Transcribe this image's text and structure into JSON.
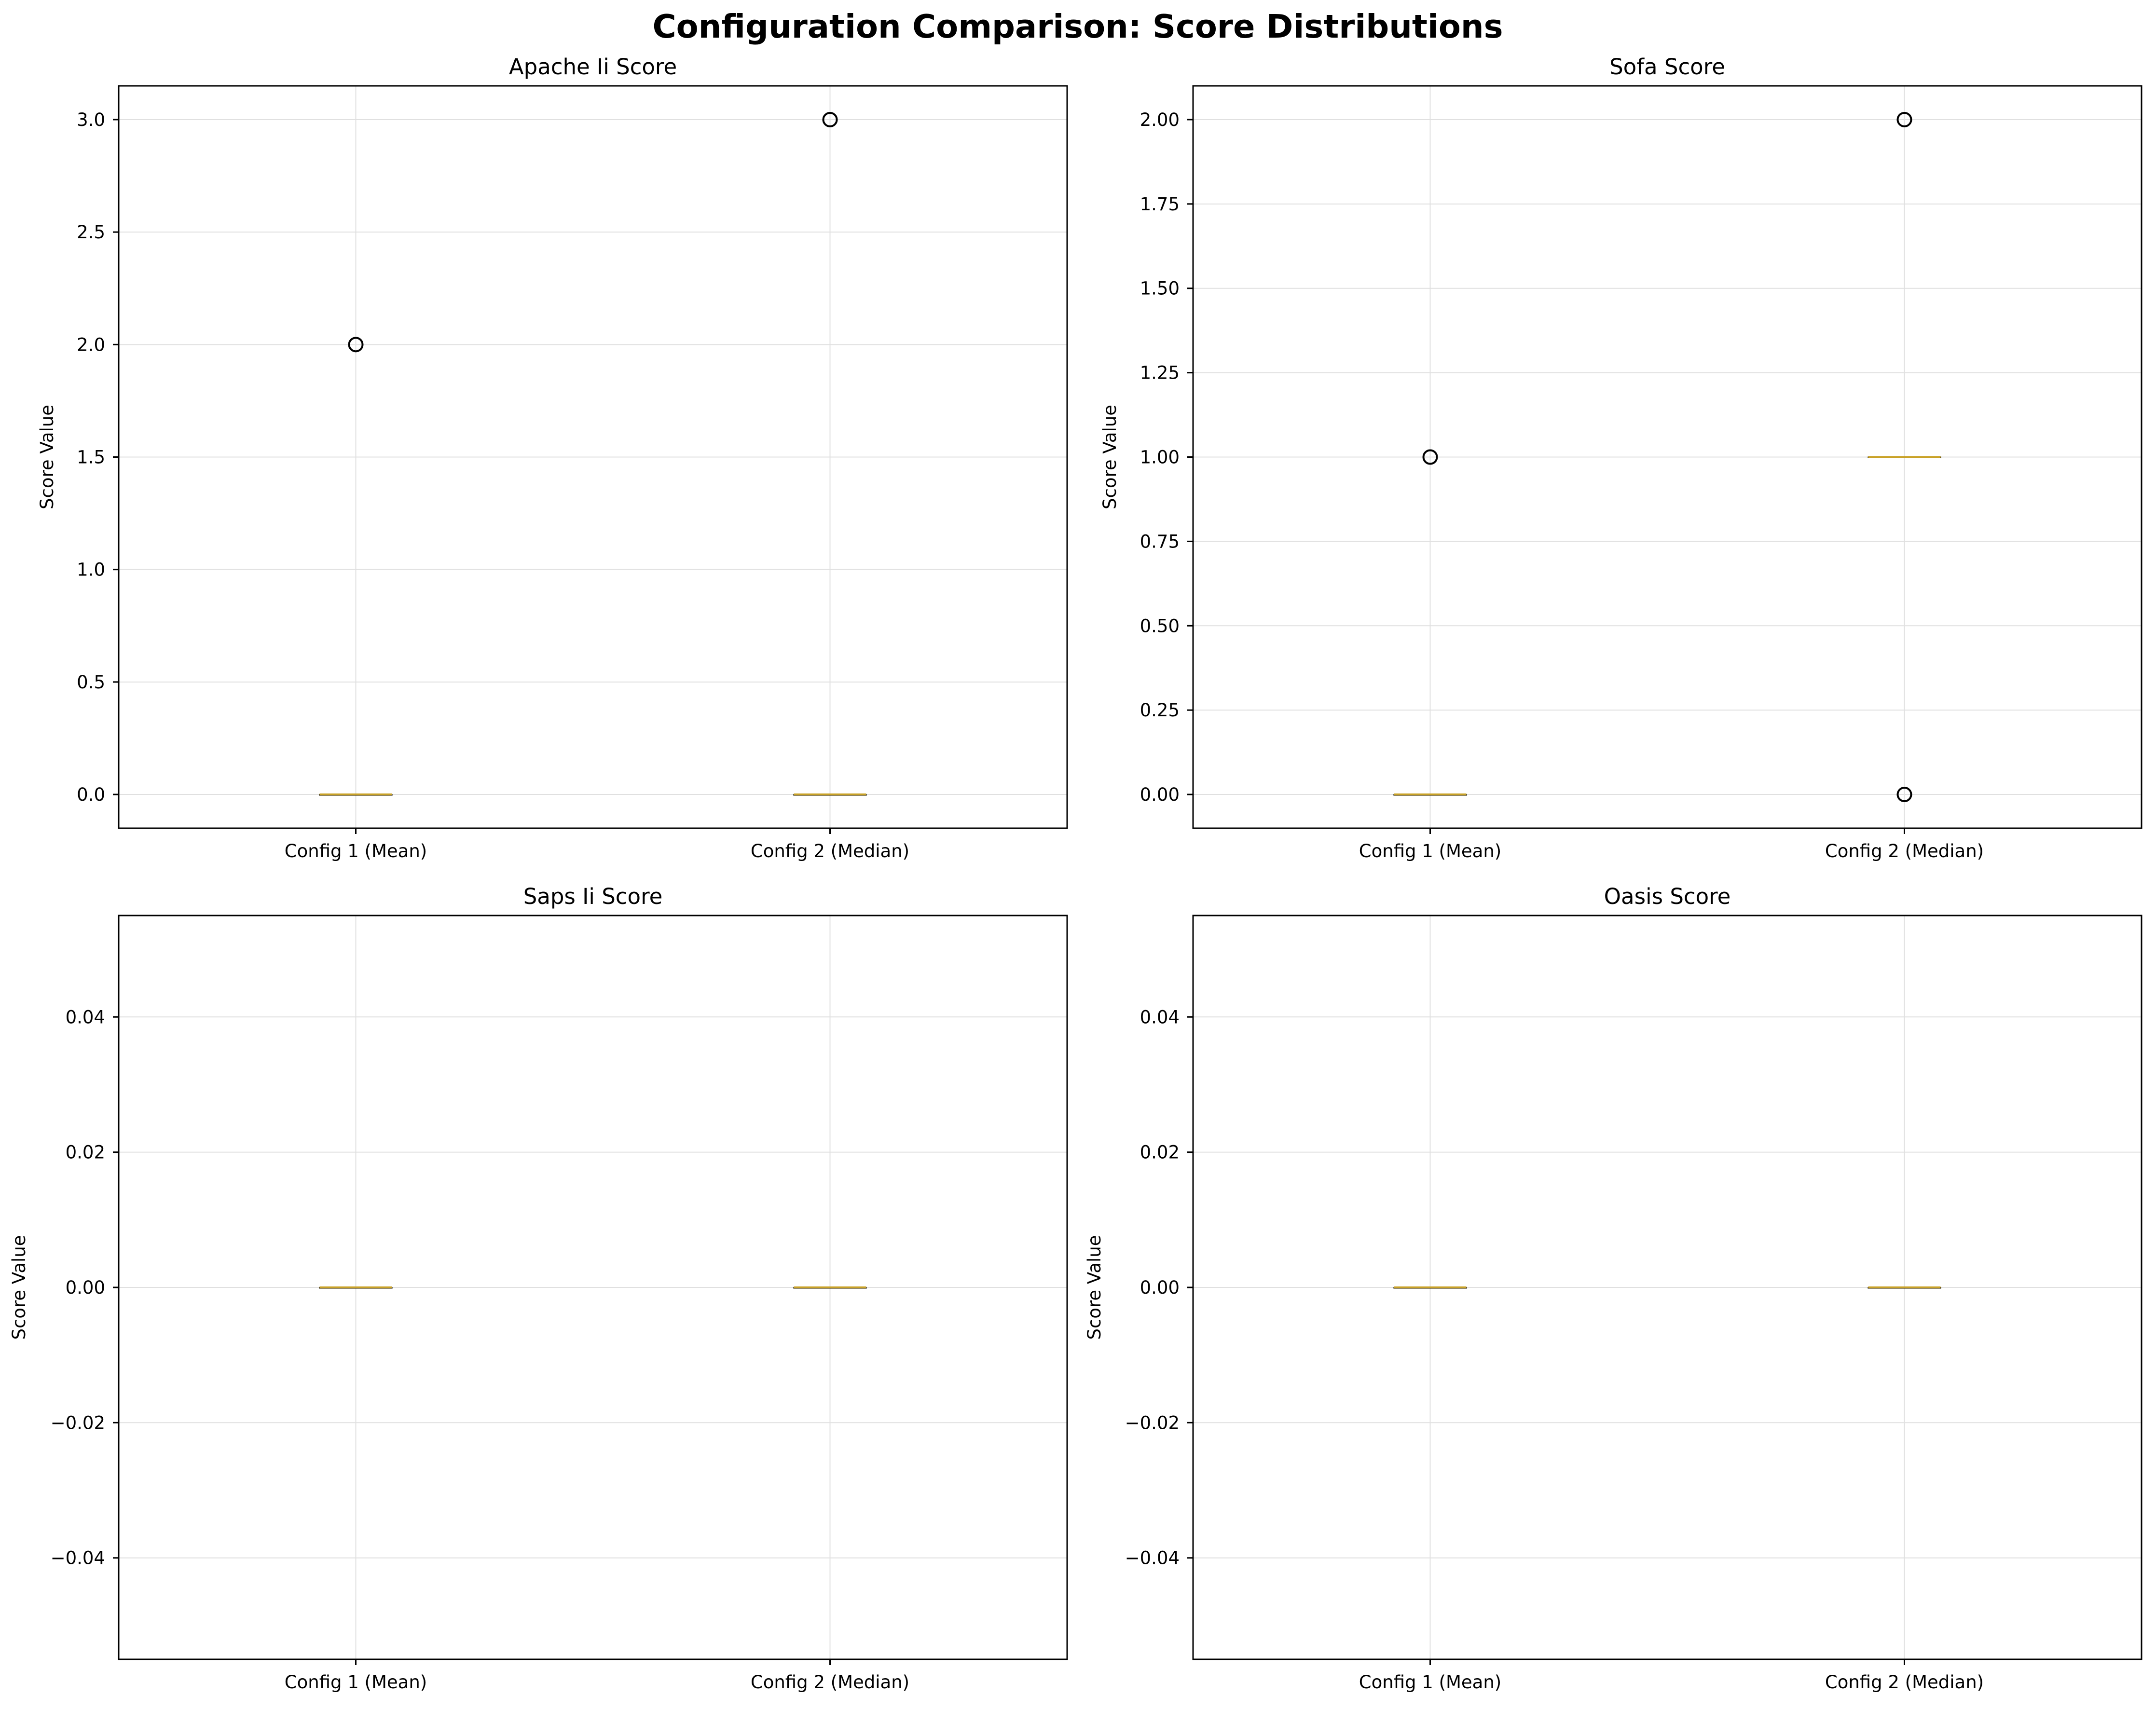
{
  "figure": {
    "title": "Configuration Comparison: Score Distributions"
  },
  "colors": {
    "grid": "#e0e0e0",
    "axes": "#000000",
    "median": "#c9a227",
    "median_edge": "#8a8a3a",
    "outlier_edge": "#000000"
  },
  "chart_data": [
    {
      "type": "box",
      "title": "Apache Ii Score",
      "ylabel": "Score Value",
      "ylim": [
        -0.15,
        3.15
      ],
      "yticks": [
        0.0,
        0.5,
        1.0,
        1.5,
        2.0,
        2.5,
        3.0
      ],
      "ytick_labels": [
        "0.0",
        "0.5",
        "1.0",
        "1.5",
        "2.0",
        "2.5",
        "3.0"
      ],
      "grid": true,
      "categories": [
        "Config 1 (Mean)",
        "Config 2 (Median)"
      ],
      "boxes": [
        {
          "q1": 0,
          "median": 0,
          "q3": 0,
          "whislo": 0,
          "whishi": 0,
          "fliers": [
            2.0
          ]
        },
        {
          "q1": 0,
          "median": 0,
          "q3": 0,
          "whislo": 0,
          "whishi": 0,
          "fliers": [
            3.0
          ]
        }
      ]
    },
    {
      "type": "box",
      "title": "Sofa Score",
      "ylabel": "Score Value",
      "ylim": [
        -0.1,
        2.1
      ],
      "yticks": [
        0.0,
        0.25,
        0.5,
        0.75,
        1.0,
        1.25,
        1.5,
        1.75,
        2.0
      ],
      "ytick_labels": [
        "0.00",
        "0.25",
        "0.50",
        "0.75",
        "1.00",
        "1.25",
        "1.50",
        "1.75",
        "2.00"
      ],
      "grid": true,
      "categories": [
        "Config 1 (Mean)",
        "Config 2 (Median)"
      ],
      "boxes": [
        {
          "q1": 0,
          "median": 0,
          "q3": 0,
          "whislo": 0,
          "whishi": 0,
          "fliers": [
            1.0
          ]
        },
        {
          "q1": 1,
          "median": 1,
          "q3": 1,
          "whislo": 1,
          "whishi": 1,
          "fliers": [
            2.0,
            0.0
          ]
        }
      ]
    },
    {
      "type": "box",
      "title": "Saps Ii Score",
      "ylabel": "Score Value",
      "ylim": [
        -0.055,
        0.055
      ],
      "yticks": [
        -0.04,
        -0.02,
        0.0,
        0.02,
        0.04
      ],
      "ytick_labels": [
        "−0.04",
        "−0.02",
        "0.00",
        "0.02",
        "0.04"
      ],
      "grid": true,
      "categories": [
        "Config 1 (Mean)",
        "Config 2 (Median)"
      ],
      "boxes": [
        {
          "q1": 0,
          "median": 0,
          "q3": 0,
          "whislo": 0,
          "whishi": 0,
          "fliers": []
        },
        {
          "q1": 0,
          "median": 0,
          "q3": 0,
          "whislo": 0,
          "whishi": 0,
          "fliers": []
        }
      ]
    },
    {
      "type": "box",
      "title": "Oasis Score",
      "ylabel": "Score Value",
      "ylim": [
        -0.055,
        0.055
      ],
      "yticks": [
        -0.04,
        -0.02,
        0.0,
        0.02,
        0.04
      ],
      "ytick_labels": [
        "−0.04",
        "−0.02",
        "0.00",
        "0.02",
        "0.04"
      ],
      "grid": true,
      "categories": [
        "Config 1 (Mean)",
        "Config 2 (Median)"
      ],
      "boxes": [
        {
          "q1": 0,
          "median": 0,
          "q3": 0,
          "whislo": 0,
          "whishi": 0,
          "fliers": []
        },
        {
          "q1": 0,
          "median": 0,
          "q3": 0,
          "whislo": 0,
          "whishi": 0,
          "fliers": []
        }
      ]
    }
  ]
}
